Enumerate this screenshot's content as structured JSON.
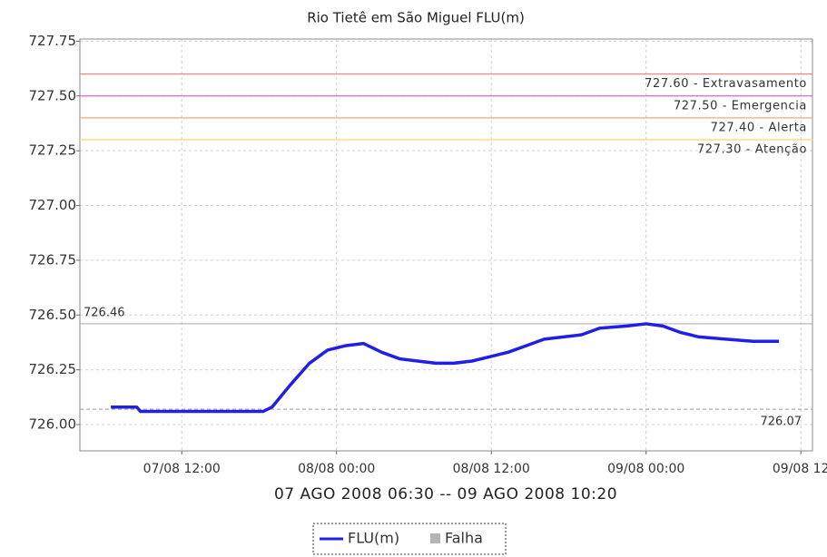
{
  "chart_data": {
    "type": "line",
    "title": "Rio Tietê em São Miguel FLU(m)",
    "x_label": "07 AGO 2008 06:30 -- 09 AGO 2008 10:20",
    "x": [
      6.5,
      8.5,
      8.8,
      18.3,
      19.0,
      20.4,
      21.9,
      23.3,
      24.7,
      26.1,
      27.5,
      28.9,
      30.3,
      31.7,
      33.1,
      34.5,
      35.9,
      37.3,
      38.7,
      40.1,
      41.6,
      43.0,
      44.4,
      46.5,
      48.0,
      49.3,
      50.7,
      52.1,
      54.2,
      56.3,
      58.3
    ],
    "series": [
      {
        "name": "FLU(m)",
        "color": "#1f1fe6",
        "values": [
          726.08,
          726.08,
          726.06,
          726.06,
          726.08,
          726.18,
          726.28,
          726.34,
          726.36,
          726.37,
          726.33,
          726.3,
          726.29,
          726.28,
          726.28,
          726.29,
          726.31,
          726.33,
          726.36,
          726.39,
          726.4,
          726.41,
          726.44,
          726.45,
          726.46,
          726.45,
          726.42,
          726.4,
          726.39,
          726.38,
          726.38
        ]
      }
    ],
    "failure_legend": {
      "name": "Falha",
      "color": "#b4b4b4"
    },
    "xlim": [
      4.1,
      60.9
    ],
    "xticks": [
      {
        "value": 12,
        "label": "07/08 12:00"
      },
      {
        "value": 24,
        "label": "08/08 00:00"
      },
      {
        "value": 36,
        "label": "08/08 12:00"
      },
      {
        "value": 48,
        "label": "09/08 00:00"
      },
      {
        "value": 60,
        "label": "09/08 12"
      }
    ],
    "ylim": [
      725.88,
      727.76
    ],
    "yticks": [
      {
        "value": 726,
        "label": "726.00"
      },
      726.25,
      {
        "value": 726.5,
        "label": "726.50"
      },
      726.75,
      {
        "value": 727,
        "label": "727.00"
      },
      727.25,
      {
        "value": 727.5,
        "label": "727.50"
      },
      727.75
    ],
    "grid": true,
    "thresholds": [
      {
        "value": 727.6,
        "label": "727.60 - Extravasamento",
        "color": "#ff8080"
      },
      {
        "value": 727.5,
        "label": "727.50 - Emergencia",
        "color": "#e060e0"
      },
      {
        "value": 727.4,
        "label": "727.40 - Alerta",
        "color": "#f0b080"
      },
      {
        "value": 727.3,
        "label": "727.30 - Atenção",
        "color": "#f0e070"
      }
    ],
    "max_line": 726.46,
    "min_line": 726.07
  }
}
